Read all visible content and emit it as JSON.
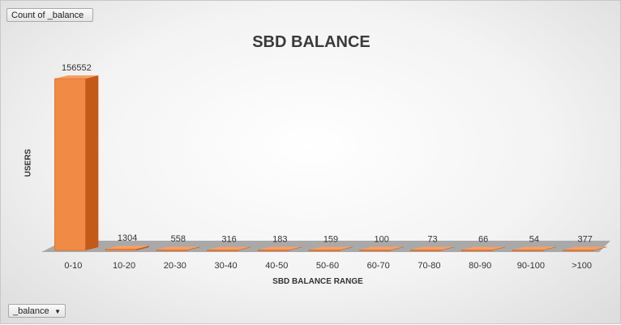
{
  "pivot": {
    "value_field": "Count of _balance",
    "filter_field": "_balance",
    "filter_arrow": "▼"
  },
  "colors": {
    "bar_front": "#f08a44",
    "bar_side": "#c45a18",
    "bar_top": "#f6a066",
    "floor": "#a9a9a9"
  },
  "chart_data": {
    "type": "bar",
    "title": "SBD BALANCE",
    "xlabel": "SBD BALANCE RANGE",
    "ylabel": "USERS",
    "categories": [
      "0-10",
      "10-20",
      "20-30",
      "30-40",
      "40-50",
      "50-60",
      "60-70",
      "70-80",
      "80-90",
      "90-100",
      ">100"
    ],
    "values": [
      156552,
      1304,
      558,
      316,
      183,
      159,
      100,
      73,
      66,
      54,
      377
    ],
    "ylim": [
      0,
      156552
    ],
    "grid": false,
    "legend": "none",
    "style": "3d-column"
  }
}
